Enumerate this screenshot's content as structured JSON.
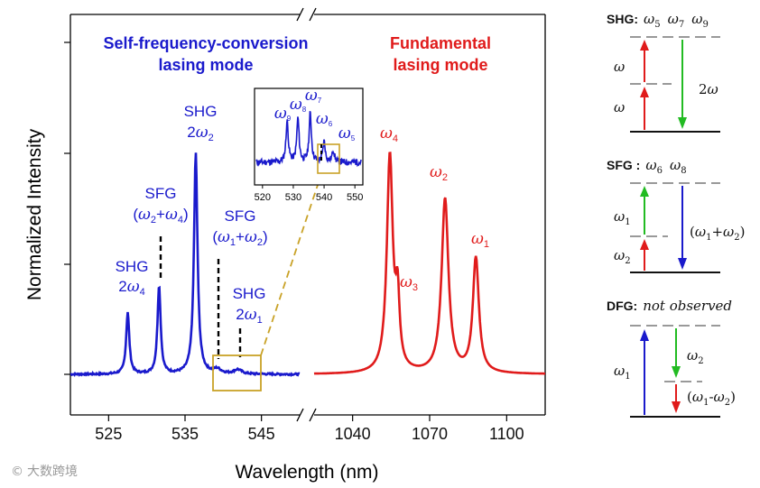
{
  "chart_data": {
    "type": "line",
    "xlabel": "Wavelength (nm)",
    "ylabel": "Normalized Intensity",
    "grid": false,
    "segments": [
      {
        "name": "Self-frequency-conversion lasing mode",
        "color": "#1a1acc",
        "xlim": [
          520,
          550
        ],
        "ticks": [
          525,
          535,
          545
        ]
      },
      {
        "name": "Fundamental lasing mode",
        "color": "#e01b1b",
        "xlim": [
          1025,
          1115
        ],
        "ticks": [
          1040,
          1070,
          1100
        ]
      }
    ],
    "ylim": [
      0,
      1.2
    ],
    "series": [
      {
        "name": "Self-frequency-conversion lasing mode",
        "peaks": [
          {
            "x": 527.5,
            "y": 0.28,
            "label": "SHG 2ω4"
          },
          {
            "x": 531.6,
            "y": 0.4,
            "label": "SFG (ω2+ω4)"
          },
          {
            "x": 536.4,
            "y": 1.0,
            "label": "SHG 2ω2"
          },
          {
            "x": 539.2,
            "y": 0.02,
            "label": "SFG (ω1+ω2)"
          },
          {
            "x": 541.9,
            "y": 0.02,
            "label": "SHG 2ω1"
          }
        ]
      },
      {
        "name": "Fundamental lasing mode",
        "peaks": [
          {
            "x": 1054.5,
            "y": 0.98,
            "label": "ω4"
          },
          {
            "x": 1057.5,
            "y": 0.3,
            "label": "ω3"
          },
          {
            "x": 1076.0,
            "y": 0.79,
            "label": "ω2"
          },
          {
            "x": 1088.0,
            "y": 0.52,
            "label": "ω1"
          }
        ]
      }
    ],
    "inset": {
      "xlim": [
        518,
        552
      ],
      "ticks": [
        520,
        530,
        540,
        550
      ],
      "labels": [
        "ω9",
        "ω8",
        "ω7",
        "ω6",
        "ω5"
      ]
    }
  },
  "text": {
    "xlabel": "Wavelength (nm)",
    "ylabel": "Normalized Intensity",
    "blue_title_1": "Self-frequency-conversion",
    "blue_title_2": "lasing mode",
    "red_title_1": "Fundamental",
    "red_title_2": "lasing mode",
    "shg": "SHG",
    "sfg": "SFG",
    "ticks_left": [
      "525",
      "535",
      "545"
    ],
    "ticks_right": [
      "1040",
      "1070",
      "1100"
    ],
    "inset_ticks": [
      "520",
      "530",
      "540",
      "550"
    ]
  },
  "scheme": {
    "shg_title": "SHG:",
    "sfg_title": "SFG :",
    "dfg_title": "DFG:",
    "dfg_note": "not observed",
    "shg_levels": "ω5  ω7  ω9",
    "sfg_levels": "ω6  ω8",
    "omega": "ω",
    "two_omega": "2ω",
    "omega1": "ω1",
    "omega2": "ω2",
    "sum": "(ω1+ω2)",
    "diff": "(ω1-ω2)"
  },
  "colors": {
    "blue": "#1a1acc",
    "red": "#e01b1b",
    "green": "#22bb22",
    "gold": "#c9a227"
  },
  "watermark": "大数跨境"
}
